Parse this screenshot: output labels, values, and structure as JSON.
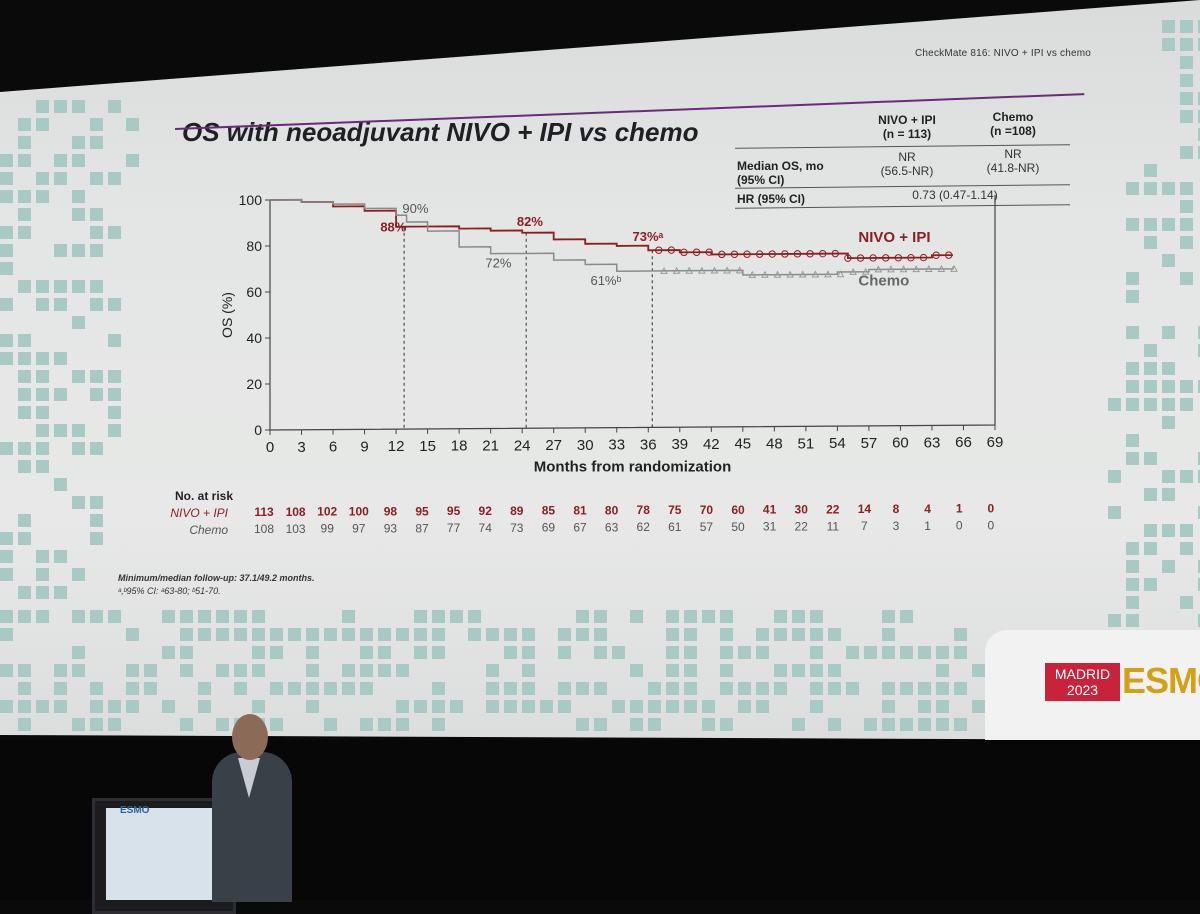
{
  "slide": {
    "label": "CheckMate 816: NIVO + IPI vs chemo",
    "title": "OS with neoadjuvant NIVO + IPI vs chemo"
  },
  "summary_table": {
    "col1_header_1": "NIVO + IPI",
    "col1_header_2": "(n = 113)",
    "col2_header_1": "Chemo",
    "col2_header_2": "(n =108)",
    "row1_label_1": "Median OS, mo",
    "row1_label_2": "(95% CI)",
    "row1_col1_1": "NR",
    "row1_col1_2": "(56.5-NR)",
    "row1_col2_1": "NR",
    "row1_col2_2": "(41.8-NR)",
    "row2_label": "HR (95% CI)",
    "row2_value": "0.73 (0.47-1.14)"
  },
  "chart_data": {
    "type": "line",
    "ylabel": "OS (%)",
    "xlabel": "Months from randomization",
    "xlim": [
      0,
      69
    ],
    "ylim": [
      0,
      100
    ],
    "x_ticks": [
      0,
      3,
      6,
      9,
      12,
      15,
      18,
      21,
      24,
      27,
      30,
      33,
      36,
      39,
      42,
      45,
      48,
      51,
      54,
      57,
      60,
      63,
      66,
      69
    ],
    "y_ticks": [
      0,
      20,
      40,
      60,
      80,
      100
    ],
    "series": [
      {
        "name": "NIVO + IPI",
        "color": "#8b1e1e",
        "x": [
          0,
          3,
          6,
          9,
          12,
          15,
          18,
          21,
          24,
          27,
          30,
          33,
          36,
          39,
          42,
          45,
          48,
          51,
          54,
          55,
          57,
          60,
          63,
          65
        ],
        "y": [
          100,
          99,
          97,
          95,
          88,
          88,
          87,
          86,
          85,
          82,
          80,
          79,
          77,
          76,
          75,
          75,
          75,
          75,
          75,
          73,
          73,
          73,
          74,
          74
        ]
      },
      {
        "name": "Chemo",
        "color": "#8a8a8a",
        "x": [
          0,
          3,
          6,
          9,
          12,
          13,
          15,
          18,
          21,
          24,
          27,
          30,
          33,
          36,
          39,
          42,
          45,
          48,
          51,
          54,
          57,
          60,
          63,
          65
        ],
        "y": [
          100,
          99,
          98,
          96,
          93,
          90,
          86,
          79,
          76,
          76,
          73,
          71,
          68,
          68,
          68,
          68,
          66,
          66,
          66,
          67,
          68,
          68,
          68,
          69
        ]
      }
    ],
    "reference_lines_x": [
      12,
      24,
      36
    ],
    "annotations": [
      {
        "text": "88%",
        "series": "NIVO + IPI"
      },
      {
        "text": "90%",
        "series": "Chemo"
      },
      {
        "text": "82%",
        "series": "NIVO + IPI"
      },
      {
        "text": "72%",
        "series": "Chemo"
      },
      {
        "text": "73%ᵃ",
        "series": "NIVO + IPI"
      },
      {
        "text": "61%ᵇ",
        "series": "Chemo"
      }
    ],
    "legend_labels": [
      "NIVO + IPI",
      "Chemo"
    ],
    "at_risk": {
      "title": "No. at risk",
      "rows": [
        {
          "label": "NIVO + IPI",
          "values": [
            "113",
            "108",
            "102",
            "100",
            "98",
            "95",
            "95",
            "92",
            "89",
            "85",
            "81",
            "80",
            "78",
            "75",
            "70",
            "60",
            "41",
            "30",
            "22",
            "14",
            "8",
            "4",
            "1",
            "0"
          ]
        },
        {
          "label": "Chemo",
          "values": [
            "108",
            "103",
            "99",
            "97",
            "93",
            "87",
            "77",
            "74",
            "73",
            "69",
            "67",
            "63",
            "62",
            "61",
            "57",
            "50",
            "31",
            "22",
            "11",
            "7",
            "3",
            "1",
            "0",
            "0"
          ]
        }
      ]
    }
  },
  "footnotes": {
    "line1": "Minimum/median follow-up: 37.1/49.2 months.",
    "line2": "ᵃ,ᵇ95% CI: ᵃ63-80; ᵇ51-70."
  },
  "badge": {
    "city": "MADRID",
    "year": "2023",
    "logo": "ESMO"
  },
  "podium_logo": "ESMO"
}
